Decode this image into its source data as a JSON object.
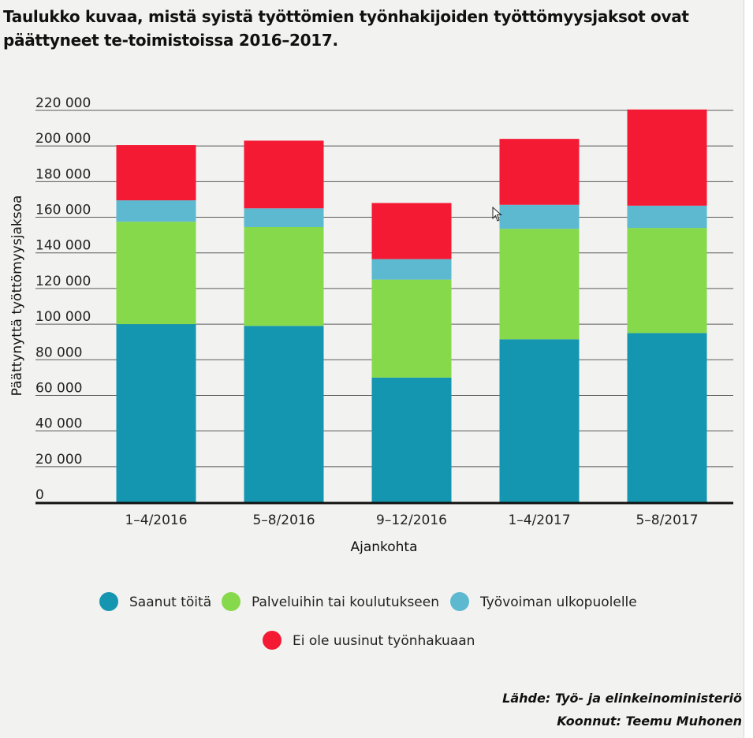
{
  "title": "Taulukko kuvaa, mistä syistä työttömien työnhakijoiden työttömyysjaksot ovat päättyneet te-toimistoissa 2016–2017.",
  "source": {
    "line1": "Lähde: Työ- ja elinkeinoministeriö",
    "line2": "Koonnut: Teemu Muhonen"
  },
  "chart_data": {
    "type": "bar",
    "stacked": true,
    "title": "Taulukko kuvaa, mistä syistä työttömien työnhakijoiden työttömyysjaksot ovat päättyneet te-toimistoissa 2016–2017.",
    "xlabel": "Ajankohta",
    "ylabel": "Päättynyttä työttömyysjaksoa",
    "ylim": [
      0,
      220000
    ],
    "yticks": [
      0,
      20000,
      40000,
      60000,
      80000,
      100000,
      120000,
      140000,
      160000,
      180000,
      200000,
      220000
    ],
    "ytick_labels": [
      "0",
      "20 000",
      "40 000",
      "60 000",
      "80 000",
      "100 000",
      "120 000",
      "140 000",
      "160 000",
      "180 000",
      "200 000",
      "220 000"
    ],
    "grid": true,
    "legend_position": "bottom",
    "categories": [
      "1–4/2016",
      "5–8/2016",
      "9–12/2016",
      "1–4/2017",
      "5–8/2017"
    ],
    "series": [
      {
        "name": "Saanut töitä",
        "color": "#1496b0",
        "values": [
          100000,
          99000,
          70000,
          91500,
          95000
        ]
      },
      {
        "name": "Palveluihin tai koulutukseen",
        "color": "#87d94c",
        "values": [
          57500,
          55500,
          55000,
          62000,
          59000
        ]
      },
      {
        "name": "Työvoiman ulkopuolelle",
        "color": "#5cb9cf",
        "values": [
          12000,
          10500,
          11500,
          13500,
          12500
        ]
      },
      {
        "name": "Ei ole uusinut työnhakuaan",
        "color": "#f41a33",
        "values": [
          31000,
          38000,
          31500,
          37000,
          54000
        ]
      }
    ]
  }
}
